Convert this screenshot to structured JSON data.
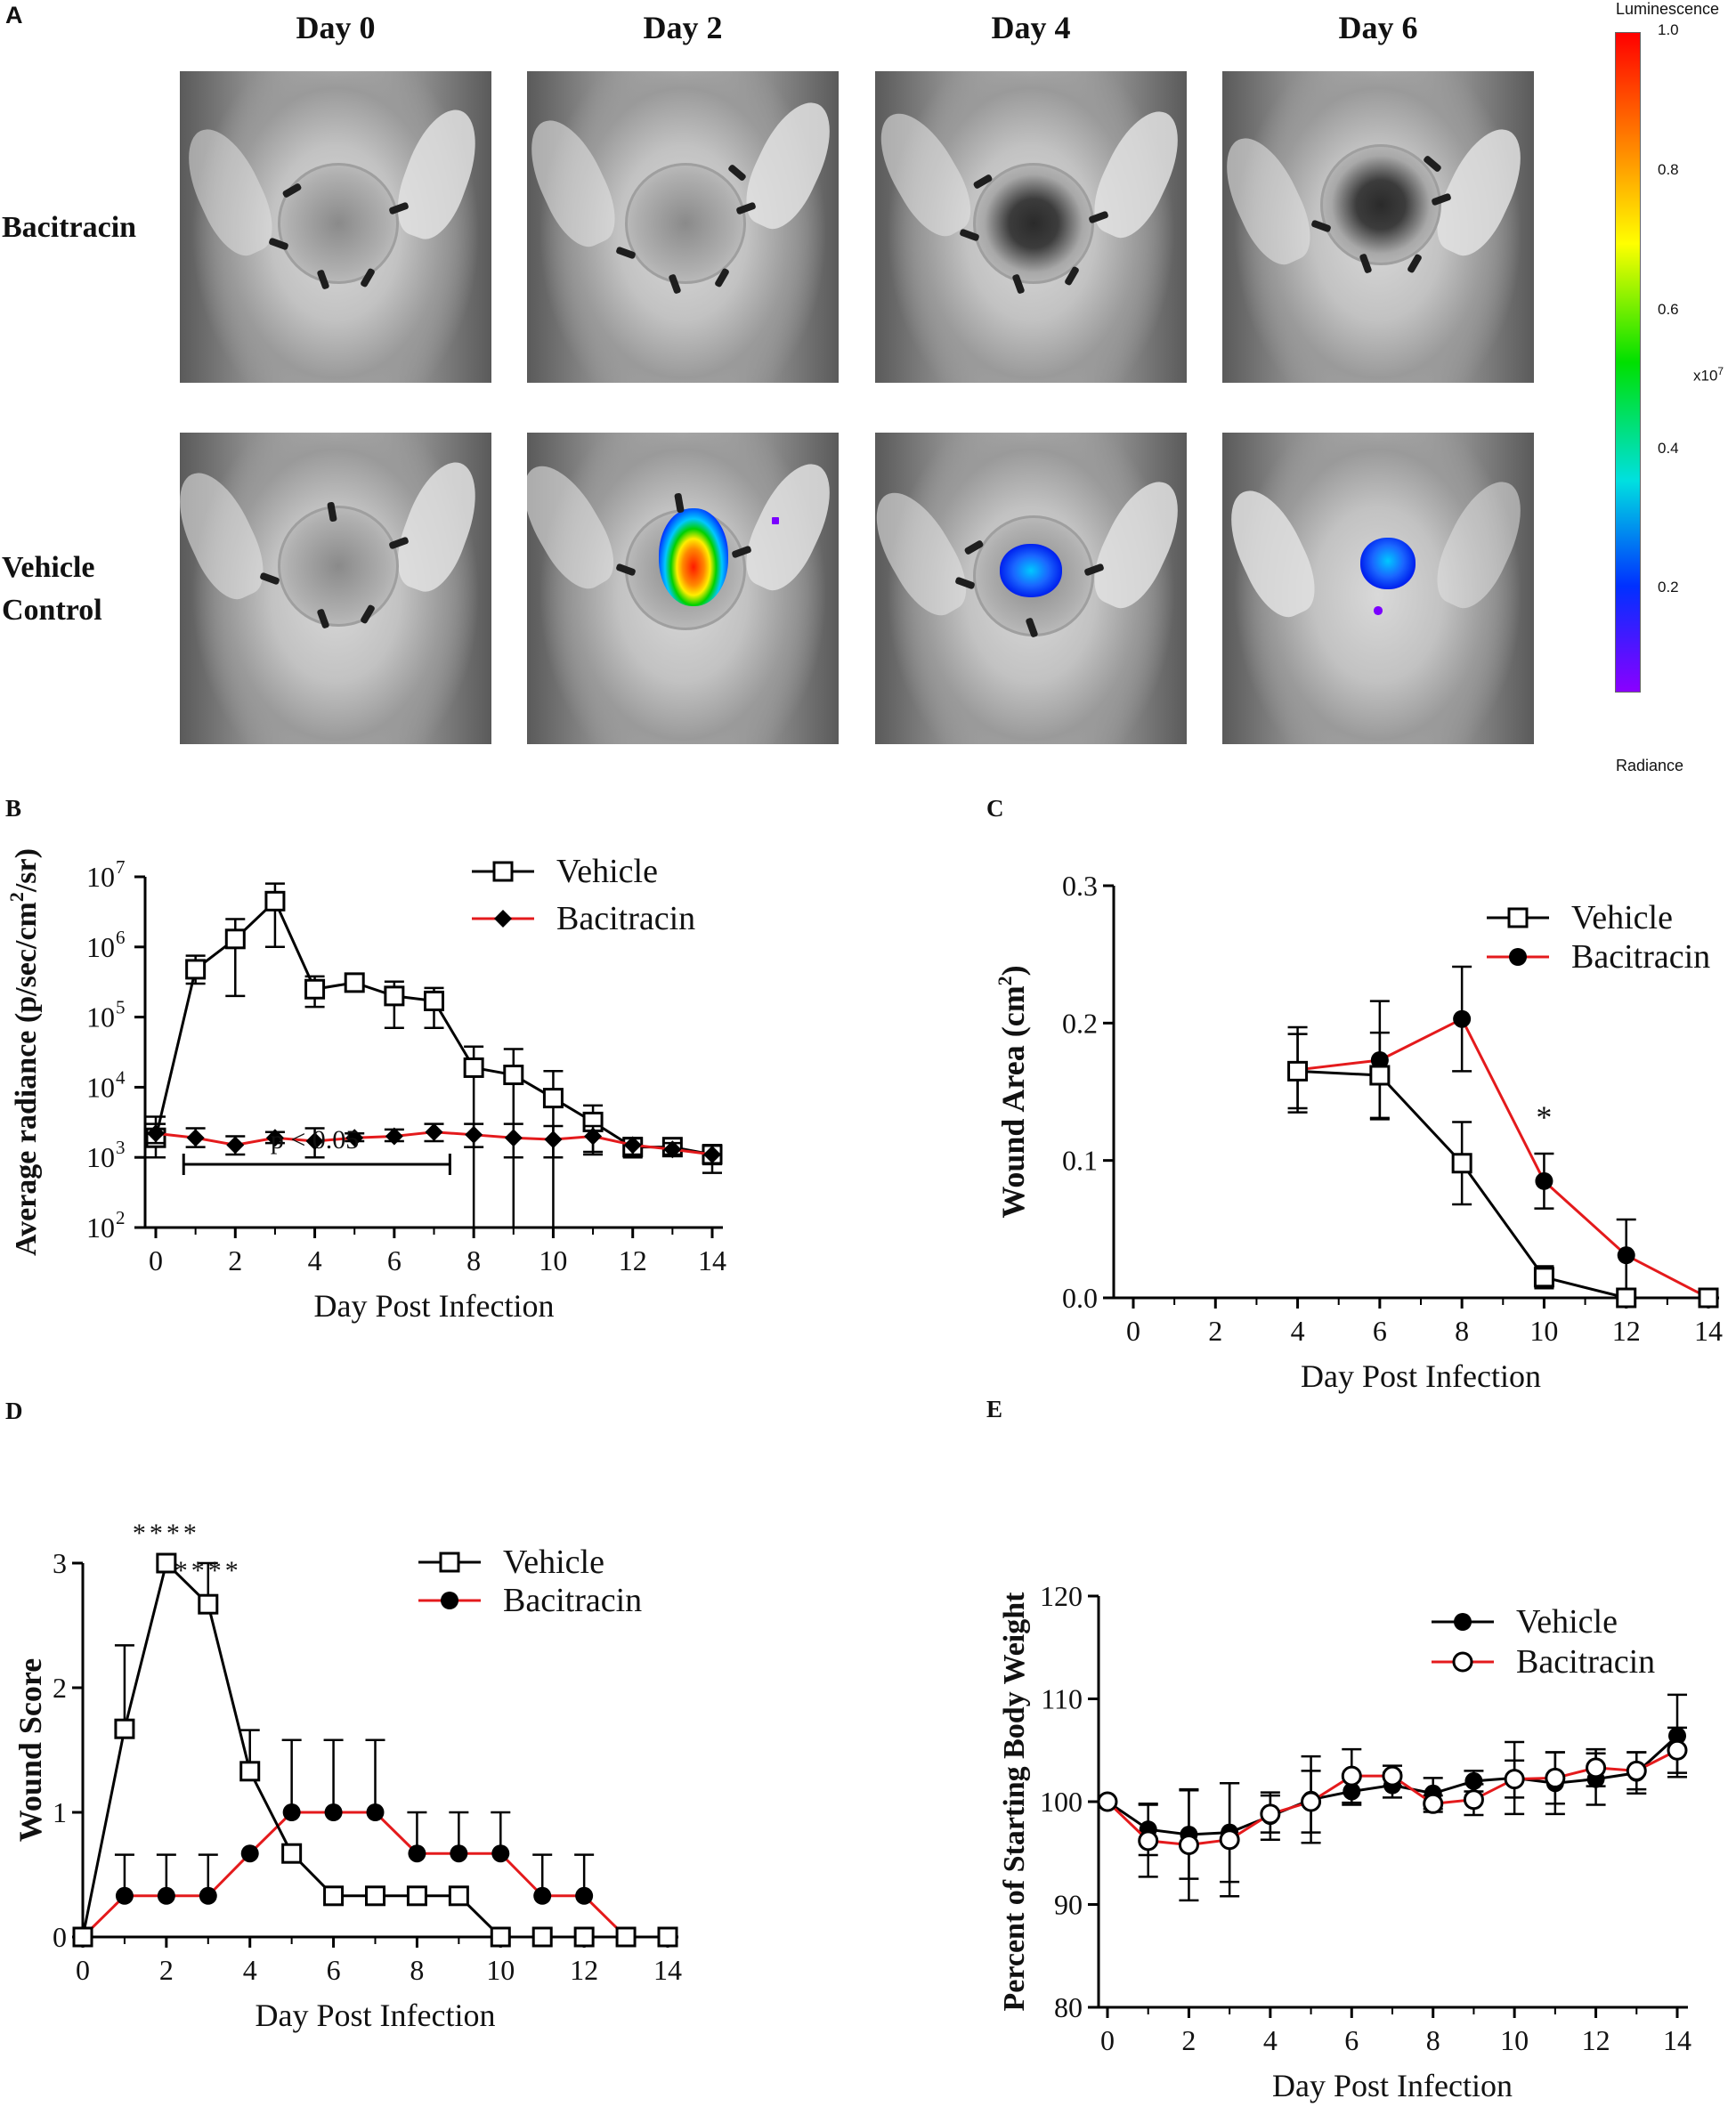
{
  "panel_a": {
    "label": "A",
    "days": [
      "Day 0",
      "Day 2",
      "Day 4",
      "Day 6"
    ],
    "rows": [
      {
        "label": "Bacitracin"
      },
      {
        "label": "Vehicle Control"
      }
    ],
    "colorbar": {
      "title": "Luminescence",
      "bottom_label": "Radiance",
      "multiplier": "x10",
      "multiplier_exp": "7",
      "ticks": [
        "1.0",
        "0.8",
        "0.6",
        "0.4",
        "0.2"
      ],
      "colors": {
        "top": "#ff0000",
        "orange": "#ff8c00",
        "yellow": "#ffff00",
        "green": "#00e000",
        "cyan": "#00e0e0",
        "blue": "#0030ff",
        "bottom": "#8a00ff"
      }
    }
  },
  "chart_data": [
    {
      "id": "B",
      "type": "line",
      "label": "B",
      "yscale": "log",
      "ylim": [
        100,
        10000000
      ],
      "xlim": [
        0,
        14
      ],
      "xticks": [
        "0",
        "2",
        "4",
        "6",
        "8",
        "10",
        "12",
        "14"
      ],
      "yticks": [
        "10",
        "10",
        "10",
        "10",
        "10",
        "10"
      ],
      "ytick_exps": [
        "2",
        "3",
        "4",
        "5",
        "6",
        "7"
      ],
      "xlabel": "Day Post Infection",
      "ylabel": "Average radiance (p/sec/cm",
      "ylabel_sup": "2",
      "ylabel_end": "/sr)",
      "annotation": "p < 0.05",
      "legend": [
        "Vehicle",
        "Bacitracin"
      ],
      "series": [
        {
          "name": "Vehicle",
          "color": "#000000",
          "marker": "open-square",
          "x": [
            0,
            1,
            2,
            3,
            4,
            5,
            6,
            7,
            8,
            9,
            10,
            11,
            12,
            13,
            14
          ],
          "y": [
            1900,
            480000,
            1300000,
            4500000,
            250000,
            310000,
            200000,
            170000,
            19000,
            15000,
            7000,
            3200,
            1400,
            1400,
            1100
          ],
          "err_hi": [
            3800,
            750000,
            2500000,
            8000000,
            380000,
            360000,
            320000,
            260000,
            38000,
            35000,
            17000,
            5500,
            1800,
            1800,
            1500
          ],
          "err_lo": [
            1000,
            300000,
            200000,
            1000000,
            140000,
            270000,
            70000,
            70000,
            100,
            100,
            100,
            1200,
            1000,
            1100,
            600
          ]
        },
        {
          "name": "Bacitracin",
          "color": "#e41a1c",
          "marker": "filled-diamond",
          "x": [
            0,
            1,
            2,
            3,
            4,
            5,
            6,
            7,
            8,
            9,
            10,
            11,
            12,
            13,
            14
          ],
          "y": [
            2200,
            1900,
            1500,
            1900,
            1700,
            1900,
            2000,
            2300,
            2100,
            1900,
            1800,
            2000,
            1500,
            1300,
            1100
          ],
          "err_hi": [
            3000,
            2600,
            2000,
            2300,
            2600,
            2200,
            2500,
            3000,
            3000,
            3000,
            2800,
            2800,
            1900,
            1600,
            1500
          ],
          "err_lo": [
            1600,
            1400,
            1100,
            1600,
            1000,
            1700,
            1700,
            1700,
            1400,
            1000,
            1000,
            1100,
            1100,
            1100,
            800
          ]
        }
      ]
    },
    {
      "id": "C",
      "type": "line",
      "label": "C",
      "ylim": [
        0,
        0.3
      ],
      "xlim": [
        0,
        14
      ],
      "xticks": [
        "0",
        "2",
        "4",
        "6",
        "8",
        "10",
        "12",
        "14"
      ],
      "yticks": [
        "0.0",
        "0.1",
        "0.2",
        "0.3"
      ],
      "xlabel": "Day Post Infection",
      "ylabel": "Wound Area (cm",
      "ylabel_sup": "2",
      "ylabel_end": ")",
      "annotation": "*",
      "legend": [
        "Vehicle",
        "Bacitracin"
      ],
      "series": [
        {
          "name": "Vehicle",
          "color": "#000000",
          "marker": "open-square",
          "x": [
            4,
            6,
            8,
            10,
            12,
            14
          ],
          "y": [
            0.165,
            0.162,
            0.098,
            0.015,
            0.0,
            0.0
          ],
          "err": [
            0.027,
            0.031,
            0.03,
            0.008,
            0.0,
            0.002
          ]
        },
        {
          "name": "Bacitracin",
          "color": "#e41a1c",
          "marker": "filled-circle",
          "x": [
            4,
            6,
            8,
            10,
            12,
            14
          ],
          "y": [
            0.166,
            0.173,
            0.203,
            0.085,
            0.031,
            0.0
          ],
          "err": [
            0.031,
            0.043,
            0.038,
            0.02,
            0.026,
            0.002
          ]
        }
      ]
    },
    {
      "id": "D",
      "type": "line",
      "label": "D",
      "ylim": [
        0,
        3
      ],
      "xlim": [
        0,
        14
      ],
      "xticks": [
        "0",
        "2",
        "4",
        "6",
        "8",
        "10",
        "12",
        "14"
      ],
      "yticks": [
        "0",
        "1",
        "2",
        "3"
      ],
      "xlabel": "Day Post Infection",
      "ylabel": "Wound Score",
      "annotations": [
        "****",
        "****"
      ],
      "legend": [
        "Vehicle",
        "Bacitracin"
      ],
      "series": [
        {
          "name": "Vehicle",
          "color": "#000000",
          "marker": "open-square",
          "x": [
            0,
            1,
            2,
            3,
            4,
            5,
            6,
            7,
            8,
            9,
            10,
            11,
            12,
            13,
            14
          ],
          "y": [
            0,
            1.67,
            3.0,
            2.67,
            1.33,
            0.67,
            0.33,
            0.33,
            0.33,
            0.33,
            0,
            0,
            0,
            0,
            0
          ],
          "err": [
            0,
            0.67,
            0,
            0.33,
            0.33,
            0,
            0,
            0,
            0,
            0,
            0,
            0,
            0,
            0,
            0
          ]
        },
        {
          "name": "Bacitracin",
          "color": "#e41a1c",
          "marker": "filled-circle",
          "x": [
            0,
            1,
            2,
            3,
            4,
            5,
            6,
            7,
            8,
            9,
            10,
            11,
            12,
            13,
            14
          ],
          "y": [
            0,
            0.33,
            0.33,
            0.33,
            0.67,
            1.0,
            1.0,
            1.0,
            0.67,
            0.67,
            0.67,
            0.33,
            0.33,
            0,
            0
          ],
          "err": [
            0,
            0.33,
            0.33,
            0.33,
            0,
            0.58,
            0.58,
            0.58,
            0.33,
            0.33,
            0.33,
            0.33,
            0.33,
            0,
            0
          ]
        }
      ]
    },
    {
      "id": "E",
      "type": "line",
      "label": "E",
      "ylim": [
        80,
        120
      ],
      "xlim": [
        0,
        14
      ],
      "xticks": [
        "0",
        "2",
        "4",
        "6",
        "8",
        "10",
        "12",
        "14"
      ],
      "yticks": [
        "80",
        "90",
        "100",
        "110",
        "120"
      ],
      "xlabel": "Day Post Infection",
      "ylabel": "Percent of Starting Body Weight",
      "legend": [
        "Vehicle",
        "Bacitracin"
      ],
      "series": [
        {
          "name": "Vehicle",
          "color": "#000000",
          "marker": "filled-circle",
          "x": [
            0,
            1,
            2,
            3,
            4,
            5,
            6,
            7,
            8,
            9,
            10,
            11,
            12,
            13,
            14
          ],
          "y": [
            100,
            97.3,
            96.8,
            97.0,
            98.6,
            100.2,
            101.0,
            101.6,
            100.8,
            102.0,
            102.3,
            101.8,
            102.2,
            102.8,
            106.4
          ],
          "err": [
            0,
            2.5,
            4.3,
            4.8,
            2.3,
            4.2,
            1.3,
            1.2,
            1.5,
            1.0,
            3.5,
            3.0,
            2.5,
            2.0,
            4.0
          ]
        },
        {
          "name": "Bacitracin",
          "color": "#e41a1c",
          "marker": "open-circle",
          "x": [
            0,
            1,
            2,
            3,
            4,
            5,
            6,
            7,
            8,
            9,
            10,
            11,
            12,
            13,
            14
          ],
          "y": [
            100,
            96.2,
            95.8,
            96.3,
            98.8,
            100.0,
            102.5,
            102.5,
            99.8,
            100.2,
            102.2,
            102.3,
            103.3,
            103.0,
            105.0
          ],
          "err": [
            0,
            3.5,
            5.4,
            5.5,
            1.8,
            3.0,
            2.6,
            1.0,
            0.8,
            1.5,
            1.8,
            2.5,
            1.8,
            1.8,
            2.2
          ]
        }
      ]
    }
  ]
}
